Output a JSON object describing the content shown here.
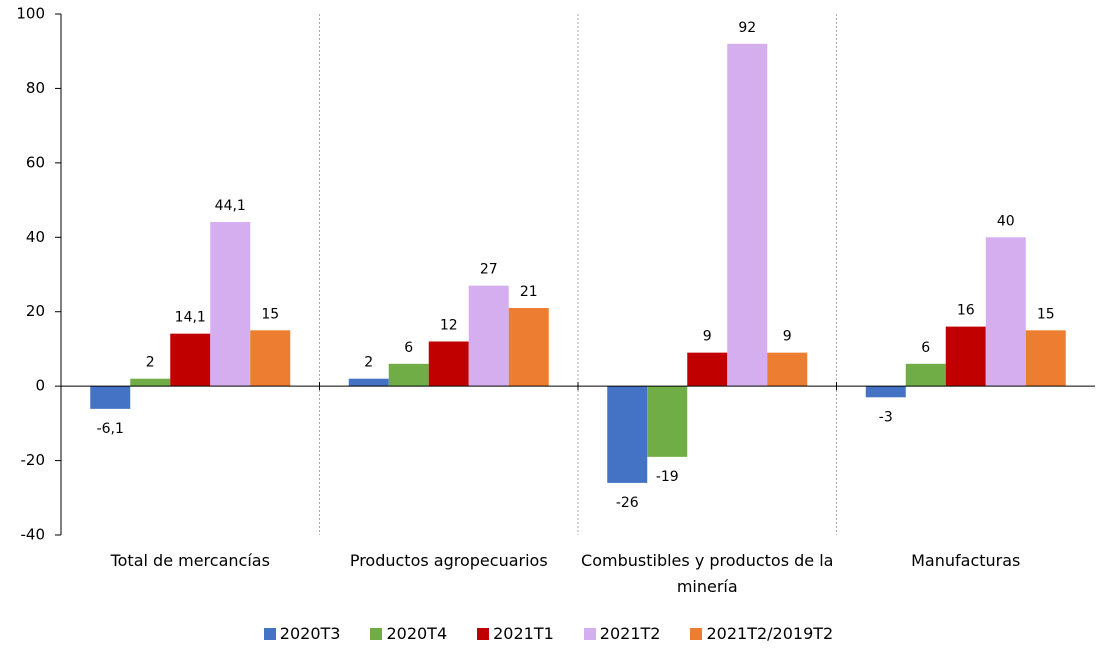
{
  "chart_data": {
    "type": "bar",
    "categories": [
      "Total de mercancías",
      "Productos agropecuarios",
      "Combustibles y productos de la minería",
      "Manufacturas"
    ],
    "series": [
      {
        "name": "2020T3",
        "color": "#4472c4",
        "values": [
          -6.1,
          2,
          -26,
          -3
        ],
        "value_labels": [
          "-6,1",
          "2",
          "-26",
          "-3"
        ]
      },
      {
        "name": "2020T4",
        "color": "#70ad47",
        "values": [
          2,
          6,
          -19,
          6
        ]
      },
      {
        "name": "2021T1",
        "color": "#c00000",
        "values": [
          14.1,
          12,
          9,
          16
        ],
        "value_labels": [
          "14,1",
          "12",
          "9",
          "16"
        ]
      },
      {
        "name": "2021T2",
        "color": "#d5aef0",
        "values": [
          44.1,
          27,
          92,
          40
        ],
        "value_labels": [
          "44,1",
          "27",
          "92",
          "40"
        ]
      },
      {
        "name": "2021T2/2019T2",
        "color": "#ed7d31",
        "values": [
          15,
          21,
          9,
          15
        ]
      }
    ],
    "ylim": [
      -40,
      100
    ],
    "yticks": [
      -40,
      -20,
      0,
      20,
      40,
      60,
      80,
      100
    ],
    "grid": false,
    "legend": "bottom"
  }
}
